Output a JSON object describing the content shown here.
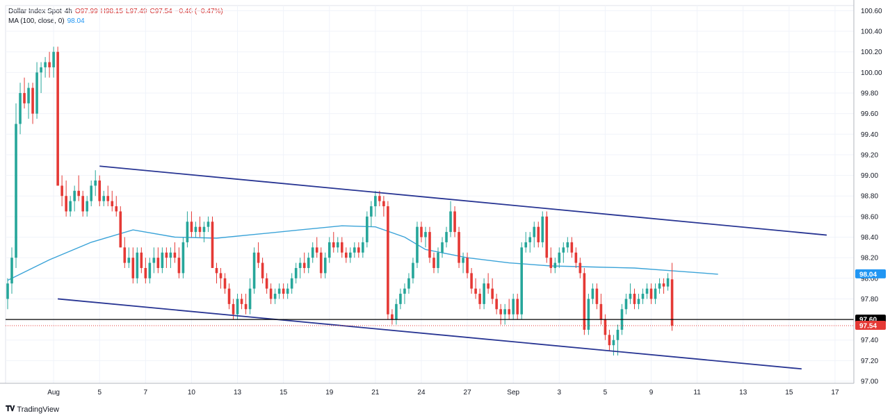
{
  "legend": {
    "symbol": "Dollar Index Spot",
    "interval": "4h",
    "open": "O97.99",
    "high": "H98.15",
    "low": "L97.49",
    "close": "C97.54",
    "change": "−0.46 (−0.47%)",
    "ma_label": "MA (100, close, 0)",
    "ma_value": "98.04"
  },
  "branding": "TradingView",
  "colors": {
    "up": "#26a69a",
    "down": "#e53935",
    "ma": "#3aa3d8",
    "channel": "#283593",
    "support": "#000000",
    "price_line": "#e53935",
    "ma_badge": "#2196f3"
  },
  "chart_data": {
    "type": "candlestick",
    "title": "Dollar Index Spot, 4h",
    "ylim": [
      96.98,
      100.65
    ],
    "y_ticks": [
      "100.60",
      "100.40",
      "100.20",
      "100.00",
      "99.80",
      "99.60",
      "99.40",
      "99.20",
      "99.00",
      "98.80",
      "98.60",
      "98.40",
      "98.20",
      "98.00",
      "97.80",
      "97.60",
      "97.40",
      "97.20",
      "97.00"
    ],
    "x_ticks": [
      {
        "label": "Aug",
        "bar": 11
      },
      {
        "label": "5",
        "bar": 22
      },
      {
        "label": "7",
        "bar": 33
      },
      {
        "label": "10",
        "bar": 44
      },
      {
        "label": "13",
        "bar": 55
      },
      {
        "label": "15",
        "bar": 66
      },
      {
        "label": "19",
        "bar": 77
      },
      {
        "label": "21",
        "bar": 88
      },
      {
        "label": "24",
        "bar": 99
      },
      {
        "label": "27",
        "bar": 110
      },
      {
        "label": "Sep",
        "bar": 121
      },
      {
        "label": "3",
        "bar": 132
      },
      {
        "label": "5",
        "bar": 143
      },
      {
        "label": "9",
        "bar": 154
      },
      {
        "label": "11",
        "bar": 165
      },
      {
        "label": "13",
        "bar": 176
      },
      {
        "label": "15",
        "bar": 187
      },
      {
        "label": "17",
        "bar": 198
      }
    ],
    "bars_total": 203,
    "candles": [
      [
        97.8,
        98.0,
        97.7,
        97.95
      ],
      [
        97.95,
        98.3,
        97.85,
        98.2
      ],
      [
        98.2,
        99.7,
        98.1,
        99.5
      ],
      [
        99.5,
        99.9,
        99.4,
        99.8
      ],
      [
        99.8,
        99.95,
        99.65,
        99.7
      ],
      [
        99.7,
        99.9,
        99.55,
        99.85
      ],
      [
        99.85,
        99.9,
        99.5,
        99.6
      ],
      [
        99.6,
        100.1,
        99.55,
        100.0
      ],
      [
        100.0,
        100.1,
        99.8,
        100.05
      ],
      [
        100.05,
        100.15,
        99.95,
        100.1
      ],
      [
        100.1,
        100.2,
        99.95,
        100.05
      ],
      [
        100.05,
        100.25,
        99.95,
        100.2
      ],
      [
        100.2,
        100.25,
        98.9,
        98.9
      ],
      [
        98.9,
        99.0,
        98.7,
        98.8
      ],
      [
        98.8,
        98.95,
        98.6,
        98.65
      ],
      [
        98.65,
        98.8,
        98.6,
        98.75
      ],
      [
        98.75,
        98.9,
        98.65,
        98.85
      ],
      [
        98.85,
        99.0,
        98.75,
        98.8
      ],
      [
        98.8,
        98.85,
        98.6,
        98.65
      ],
      [
        98.65,
        98.8,
        98.6,
        98.75
      ],
      [
        98.75,
        98.95,
        98.7,
        98.9
      ],
      [
        98.9,
        99.05,
        98.8,
        98.95
      ],
      [
        98.95,
        99.0,
        98.7,
        98.75
      ],
      [
        98.75,
        98.85,
        98.7,
        98.8
      ],
      [
        98.8,
        98.9,
        98.7,
        98.75
      ],
      [
        98.75,
        98.85,
        98.65,
        98.7
      ],
      [
        98.7,
        98.8,
        98.6,
        98.65
      ],
      [
        98.65,
        98.7,
        98.3,
        98.3
      ],
      [
        98.3,
        98.4,
        98.1,
        98.15
      ],
      [
        98.15,
        98.3,
        98.1,
        98.2
      ],
      [
        98.2,
        98.3,
        97.95,
        98.0
      ],
      [
        98.0,
        98.3,
        97.95,
        98.25
      ],
      [
        98.25,
        98.3,
        98.05,
        98.1
      ],
      [
        98.1,
        98.2,
        97.95,
        98.0
      ],
      [
        98.0,
        98.2,
        97.95,
        98.15
      ],
      [
        98.15,
        98.3,
        98.05,
        98.2
      ],
      [
        98.2,
        98.3,
        98.05,
        98.1
      ],
      [
        98.1,
        98.3,
        98.05,
        98.25
      ],
      [
        98.25,
        98.3,
        98.1,
        98.2
      ],
      [
        98.2,
        98.3,
        98.1,
        98.25
      ],
      [
        98.25,
        98.35,
        98.15,
        98.2
      ],
      [
        98.2,
        98.3,
        98.0,
        98.05
      ],
      [
        98.05,
        98.4,
        98.0,
        98.35
      ],
      [
        98.35,
        98.65,
        98.3,
        98.55
      ],
      [
        98.55,
        98.65,
        98.4,
        98.45
      ],
      [
        98.45,
        98.55,
        98.4,
        98.5
      ],
      [
        98.5,
        98.6,
        98.4,
        98.45
      ],
      [
        98.45,
        98.55,
        98.35,
        98.5
      ],
      [
        98.5,
        98.6,
        98.45,
        98.55
      ],
      [
        98.55,
        98.6,
        98.1,
        98.1
      ],
      [
        98.1,
        98.15,
        97.95,
        98.05
      ],
      [
        98.05,
        98.1,
        97.9,
        98.0
      ],
      [
        98.0,
        98.05,
        97.85,
        97.9
      ],
      [
        97.9,
        97.95,
        97.7,
        97.75
      ],
      [
        97.75,
        97.8,
        97.6,
        97.65
      ],
      [
        97.65,
        97.85,
        97.6,
        97.8
      ],
      [
        97.8,
        97.85,
        97.7,
        97.75
      ],
      [
        97.75,
        97.85,
        97.65,
        97.7
      ],
      [
        97.7,
        98.0,
        97.65,
        97.9
      ],
      [
        97.9,
        98.3,
        97.85,
        98.25
      ],
      [
        98.25,
        98.35,
        98.1,
        98.15
      ],
      [
        98.15,
        98.2,
        97.95,
        98.0
      ],
      [
        98.0,
        98.05,
        97.85,
        97.9
      ],
      [
        97.9,
        97.95,
        97.75,
        97.8
      ],
      [
        97.8,
        97.9,
        97.75,
        97.85
      ],
      [
        97.85,
        97.95,
        97.8,
        97.9
      ],
      [
        97.9,
        97.95,
        97.8,
        97.85
      ],
      [
        97.85,
        97.95,
        97.8,
        97.9
      ],
      [
        97.9,
        98.05,
        97.85,
        98.0
      ],
      [
        98.0,
        98.15,
        97.95,
        98.1
      ],
      [
        98.1,
        98.2,
        98.0,
        98.15
      ],
      [
        98.15,
        98.25,
        98.05,
        98.1
      ],
      [
        98.1,
        98.25,
        98.05,
        98.2
      ],
      [
        98.2,
        98.35,
        98.15,
        98.3
      ],
      [
        98.3,
        98.4,
        98.2,
        98.25
      ],
      [
        98.25,
        98.3,
        98.0,
        98.05
      ],
      [
        98.05,
        98.25,
        98.0,
        98.2
      ],
      [
        98.2,
        98.4,
        98.15,
        98.35
      ],
      [
        98.35,
        98.45,
        98.25,
        98.3
      ],
      [
        98.3,
        98.4,
        98.25,
        98.35
      ],
      [
        98.35,
        98.4,
        98.2,
        98.25
      ],
      [
        98.25,
        98.3,
        98.15,
        98.2
      ],
      [
        98.2,
        98.3,
        98.15,
        98.25
      ],
      [
        98.25,
        98.35,
        98.2,
        98.3
      ],
      [
        98.3,
        98.35,
        98.2,
        98.25
      ],
      [
        98.25,
        98.4,
        98.2,
        98.35
      ],
      [
        98.35,
        98.65,
        98.3,
        98.6
      ],
      [
        98.6,
        98.75,
        98.5,
        98.7
      ],
      [
        98.7,
        98.85,
        98.6,
        98.8
      ],
      [
        98.8,
        98.85,
        98.7,
        98.75
      ],
      [
        98.75,
        98.8,
        98.6,
        98.7
      ],
      [
        98.7,
        98.75,
        97.6,
        97.65
      ],
      [
        97.65,
        97.7,
        97.55,
        97.6
      ],
      [
        97.6,
        97.8,
        97.55,
        97.75
      ],
      [
        97.75,
        97.9,
        97.7,
        97.85
      ],
      [
        97.85,
        97.95,
        97.75,
        97.9
      ],
      [
        97.9,
        98.05,
        97.85,
        98.0
      ],
      [
        98.0,
        98.2,
        97.95,
        98.15
      ],
      [
        98.15,
        98.55,
        98.1,
        98.5
      ],
      [
        98.5,
        98.55,
        98.35,
        98.4
      ],
      [
        98.4,
        98.5,
        98.3,
        98.45
      ],
      [
        98.45,
        98.5,
        98.15,
        98.2
      ],
      [
        98.2,
        98.25,
        98.05,
        98.1
      ],
      [
        98.1,
        98.3,
        98.05,
        98.25
      ],
      [
        98.25,
        98.4,
        98.2,
        98.35
      ],
      [
        98.35,
        98.5,
        98.3,
        98.45
      ],
      [
        98.45,
        98.75,
        98.4,
        98.65
      ],
      [
        98.65,
        98.7,
        98.4,
        98.45
      ],
      [
        98.45,
        98.5,
        98.1,
        98.15
      ],
      [
        98.15,
        98.25,
        98.05,
        98.2
      ],
      [
        98.2,
        98.25,
        98.0,
        98.05
      ],
      [
        98.05,
        98.1,
        97.85,
        97.9
      ],
      [
        97.9,
        98.0,
        97.8,
        97.85
      ],
      [
        97.85,
        97.9,
        97.7,
        97.75
      ],
      [
        97.75,
        98.0,
        97.7,
        97.95
      ],
      [
        97.95,
        98.05,
        97.85,
        97.9
      ],
      [
        97.9,
        98.0,
        97.75,
        97.8
      ],
      [
        97.8,
        97.85,
        97.65,
        97.7
      ],
      [
        97.7,
        97.75,
        97.55,
        97.65
      ],
      [
        97.65,
        97.75,
        97.55,
        97.7
      ],
      [
        97.7,
        97.8,
        97.6,
        97.65
      ],
      [
        97.65,
        97.85,
        97.6,
        97.8
      ],
      [
        97.8,
        97.85,
        97.6,
        97.65
      ],
      [
        97.65,
        98.35,
        97.6,
        98.3
      ],
      [
        98.3,
        98.45,
        98.25,
        98.35
      ],
      [
        98.35,
        98.45,
        98.25,
        98.4
      ],
      [
        98.4,
        98.55,
        98.3,
        98.5
      ],
      [
        98.5,
        98.55,
        98.3,
        98.35
      ],
      [
        98.35,
        98.65,
        98.3,
        98.6
      ],
      [
        98.6,
        98.65,
        98.15,
        98.2
      ],
      [
        98.2,
        98.3,
        98.05,
        98.1
      ],
      [
        98.1,
        98.2,
        98.05,
        98.15
      ],
      [
        98.15,
        98.3,
        98.1,
        98.25
      ],
      [
        98.25,
        98.35,
        98.15,
        98.3
      ],
      [
        98.3,
        98.4,
        98.25,
        98.35
      ],
      [
        98.35,
        98.4,
        98.2,
        98.25
      ],
      [
        98.25,
        98.3,
        98.1,
        98.15
      ],
      [
        98.15,
        98.2,
        98.0,
        98.05
      ],
      [
        98.05,
        98.1,
        97.45,
        97.5
      ],
      [
        97.5,
        97.85,
        97.45,
        97.8
      ],
      [
        97.8,
        97.95,
        97.75,
        97.9
      ],
      [
        97.9,
        97.95,
        97.7,
        97.75
      ],
      [
        97.75,
        97.85,
        97.55,
        97.6
      ],
      [
        97.6,
        97.65,
        97.4,
        97.45
      ],
      [
        97.45,
        97.5,
        97.3,
        97.35
      ],
      [
        97.35,
        97.45,
        97.25,
        97.4
      ],
      [
        97.4,
        97.55,
        97.25,
        97.5
      ],
      [
        97.5,
        97.75,
        97.45,
        97.7
      ],
      [
        97.7,
        97.85,
        97.65,
        97.8
      ],
      [
        97.8,
        97.95,
        97.75,
        97.85
      ],
      [
        97.85,
        97.9,
        97.7,
        97.75
      ],
      [
        97.75,
        97.85,
        97.7,
        97.8
      ],
      [
        97.8,
        97.9,
        97.75,
        97.85
      ],
      [
        97.85,
        97.95,
        97.8,
        97.9
      ],
      [
        97.9,
        97.95,
        97.75,
        97.8
      ],
      [
        97.8,
        97.95,
        97.75,
        97.9
      ],
      [
        97.9,
        98.0,
        97.85,
        97.95
      ],
      [
        97.95,
        98.0,
        97.85,
        97.92
      ],
      [
        97.92,
        98.05,
        97.88,
        98.0
      ],
      [
        97.99,
        98.15,
        97.49,
        97.54
      ]
    ],
    "ma": [
      [
        0,
        97.98
      ],
      [
        10,
        98.18
      ],
      [
        20,
        98.35
      ],
      [
        30,
        98.47
      ],
      [
        40,
        98.4
      ],
      [
        50,
        98.39
      ],
      [
        60,
        98.43
      ],
      [
        70,
        98.47
      ],
      [
        80,
        98.51
      ],
      [
        88,
        98.5
      ],
      [
        95,
        98.4
      ],
      [
        100,
        98.28
      ],
      [
        110,
        98.2
      ],
      [
        120,
        98.15
      ],
      [
        130,
        98.12
      ],
      [
        140,
        98.11
      ],
      [
        150,
        98.1
      ],
      [
        160,
        98.07
      ],
      [
        170,
        98.04
      ]
    ],
    "channel_upper": {
      "from": [
        22,
        99.09
      ],
      "to": [
        196,
        98.42
      ]
    },
    "channel_lower": {
      "from": [
        12,
        97.8
      ],
      "to": [
        190,
        97.12
      ]
    },
    "support_level": 97.6,
    "last_price": 97.54,
    "ma_last": 98.04,
    "badges": [
      {
        "label": "98.04",
        "value": 98.04,
        "kind": "ma"
      },
      {
        "label": "97.60",
        "value": 97.6,
        "kind": "support"
      },
      {
        "label": "97.54",
        "value": 97.54,
        "kind": "price"
      }
    ]
  }
}
